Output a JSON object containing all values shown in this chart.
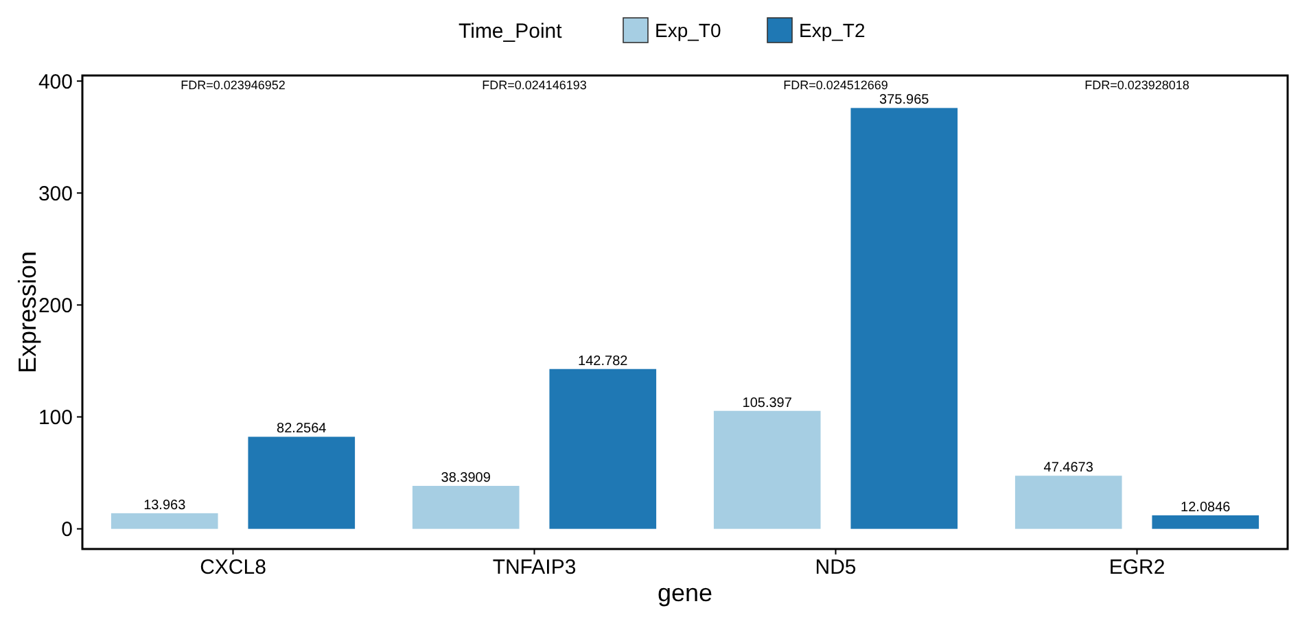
{
  "chart_data": {
    "type": "bar",
    "xlabel": "gene",
    "ylabel": "Expression",
    "legend_title": "Time_Point",
    "legend": "top",
    "categories": [
      "CXCL8",
      "TNFAIP3",
      "ND5",
      "EGR2"
    ],
    "series": [
      {
        "name": "Exp_T0",
        "color": "#a6cee3",
        "values": [
          13.963,
          38.3909,
          105.397,
          47.4673
        ]
      },
      {
        "name": "Exp_T2",
        "color": "#1f78b4",
        "values": [
          82.2564,
          142.782,
          375.965,
          12.0846
        ]
      }
    ],
    "data_labels": true,
    "ylim": [
      -18,
      405
    ],
    "yticks": [
      0,
      100,
      200,
      300,
      400
    ],
    "grid": false,
    "annotations": [
      "FDR=0.023946952",
      "FDR=0.024146193",
      "FDR=0.024512669",
      "FDR=0.023928018"
    ]
  }
}
